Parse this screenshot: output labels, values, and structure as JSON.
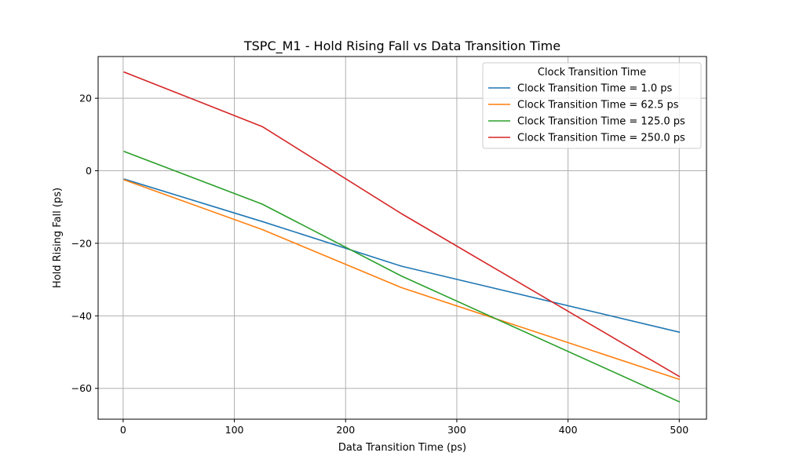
{
  "chart_data": {
    "type": "line",
    "title": "TSPC_M1 - Hold Rising Fall vs Data Transition Time",
    "xlabel": "Data Transition Time (ps)",
    "ylabel": "Hold Rising Fall (ps)",
    "xlim": [
      -22.5,
      524.5
    ],
    "ylim": [
      -68.5,
      31.5
    ],
    "xticks": [
      0,
      100,
      200,
      300,
      400,
      500
    ],
    "yticks": [
      -60,
      -40,
      -20,
      0,
      20
    ],
    "xtick_labels": [
      "0",
      "100",
      "200",
      "300",
      "400",
      "500"
    ],
    "ytick_labels": [
      "−60",
      "−40",
      "−20",
      "0",
      "20"
    ],
    "grid": true,
    "legend": {
      "title": "Clock Transition Time",
      "placement": "top-right"
    },
    "x": [
      1.0,
      125.0,
      250.0,
      500.0
    ],
    "series": [
      {
        "name": "Clock Transition Time = 1.0 ps",
        "color": "#1f77b4",
        "values": [
          -2.3,
          -14.0,
          -26.3,
          -44.5
        ]
      },
      {
        "name": "Clock Transition Time = 62.5 ps",
        "color": "#ff7f0e",
        "values": [
          -2.5,
          -16.2,
          -32.2,
          -57.5
        ]
      },
      {
        "name": "Clock Transition Time = 125.0 ps",
        "color": "#2ca02c",
        "values": [
          5.3,
          -9.2,
          -29.0,
          -63.7
        ]
      },
      {
        "name": "Clock Transition Time = 250.0 ps",
        "color": "#d62728",
        "values": [
          27.2,
          12.2,
          -11.8,
          -56.7
        ]
      }
    ]
  }
}
